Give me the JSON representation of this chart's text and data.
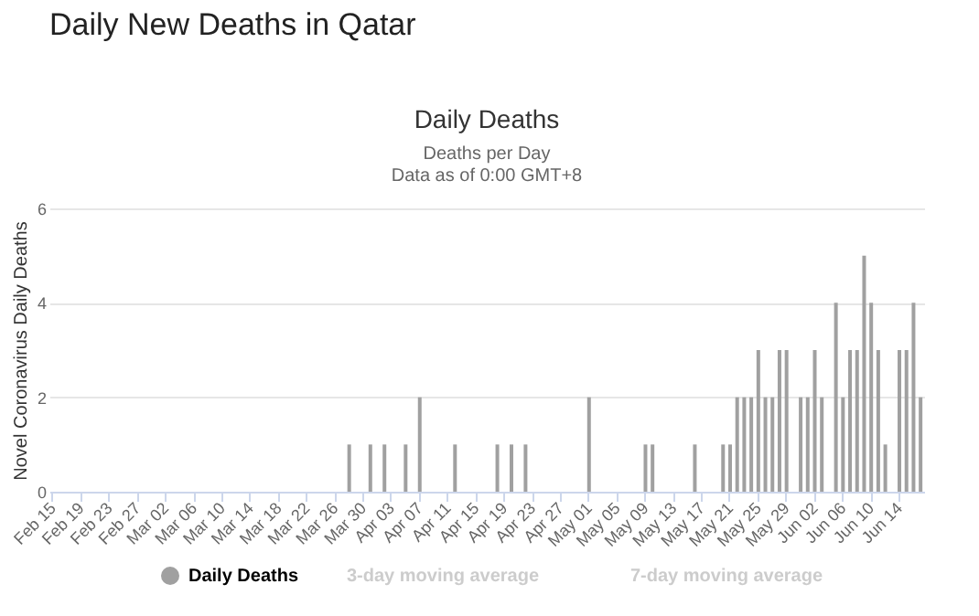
{
  "chart_data": {
    "type": "bar",
    "title": "Daily New Deaths in Qatar",
    "annotations": [
      "Daily Deaths",
      "Deaths per Day",
      "Data as of 0:00 GMT+8",
      "3-day moving average",
      "7-day moving average"
    ],
    "ylabel": "Novel Coronavirus Daily Deaths",
    "categories": [
      "Feb 15",
      null,
      null,
      null,
      "Feb 19",
      null,
      null,
      null,
      "Feb 23",
      null,
      null,
      null,
      "Feb 27",
      null,
      null,
      null,
      "Mar 02",
      null,
      null,
      null,
      "Mar 06",
      null,
      null,
      null,
      "Mar 10",
      null,
      null,
      null,
      "Mar 14",
      null,
      null,
      null,
      "Mar 18",
      null,
      null,
      null,
      "Mar 22",
      null,
      null,
      null,
      "Mar 26",
      null,
      null,
      null,
      "Mar 30",
      null,
      null,
      null,
      "Apr 03",
      null,
      null,
      null,
      "Apr 07",
      null,
      null,
      null,
      "Apr 11",
      null,
      null,
      null,
      "Apr 15",
      null,
      null,
      null,
      "Apr 19",
      null,
      null,
      null,
      "Apr 23",
      null,
      null,
      null,
      "Apr 27",
      null,
      null,
      null,
      "May 01",
      null,
      null,
      null,
      "May 05",
      null,
      null,
      null,
      "May 09",
      null,
      null,
      null,
      "May 13",
      null,
      null,
      null,
      "May 17",
      null,
      null,
      null,
      "May 21",
      null,
      null,
      null,
      "May 25",
      null,
      null,
      null,
      "May 29",
      null,
      null,
      null,
      "Jun 02",
      null,
      null,
      null,
      "Jun 06",
      null,
      null,
      null,
      "Jun 10",
      null,
      null,
      null,
      "Jun 14",
      null,
      null,
      null
    ],
    "series": [
      {
        "name": "Daily Deaths",
        "color": "#a0a0a0",
        "values": [
          0,
          0,
          0,
          0,
          0,
          0,
          0,
          0,
          0,
          0,
          0,
          0,
          0,
          0,
          0,
          0,
          0,
          0,
          0,
          0,
          0,
          0,
          0,
          0,
          0,
          0,
          0,
          0,
          0,
          0,
          0,
          0,
          0,
          0,
          0,
          0,
          0,
          0,
          0,
          0,
          0,
          0,
          1,
          0,
          0,
          1,
          0,
          1,
          0,
          0,
          1,
          0,
          2,
          0,
          0,
          0,
          0,
          1,
          0,
          0,
          0,
          0,
          0,
          1,
          0,
          1,
          0,
          1,
          0,
          0,
          0,
          0,
          0,
          0,
          0,
          0,
          2,
          0,
          0,
          0,
          0,
          0,
          0,
          0,
          1,
          1,
          0,
          0,
          0,
          0,
          0,
          1,
          0,
          0,
          0,
          1,
          1,
          2,
          2,
          2,
          3,
          2,
          2,
          3,
          3,
          0,
          2,
          2,
          3,
          2,
          0,
          4,
          2,
          3,
          3,
          5,
          4,
          3,
          1,
          0,
          3,
          3,
          4,
          2
        ]
      }
    ],
    "ylim": [
      0,
      6
    ],
    "yticks": [
      0,
      2,
      4,
      6
    ],
    "grid": "y",
    "legend": "bottom"
  }
}
